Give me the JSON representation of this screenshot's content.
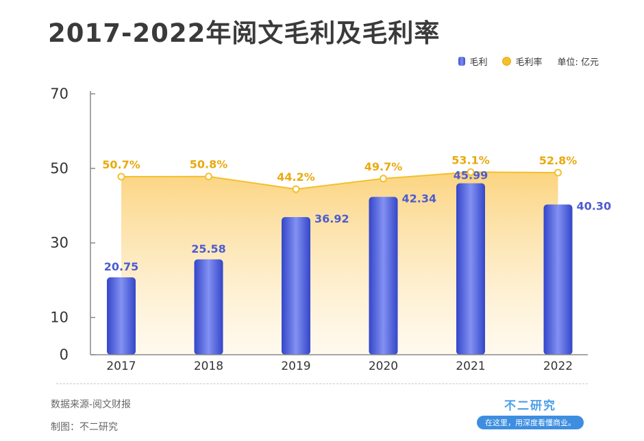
{
  "title": "2017-2022年阅文毛利及毛利率",
  "legend": {
    "bar_label": "毛利",
    "line_label": "毛利率",
    "unit": "单位: 亿元"
  },
  "footer": {
    "source": "数据来源-阅文财报",
    "maker": "制图：不二研究",
    "brand_name": "不二研究",
    "brand_tagline": "在这里，用深度看懂商业。"
  },
  "colors": {
    "bar": "#4a5bd8",
    "bar_label": "#4d5ccf",
    "line": "#f4bf2b",
    "line_label": "#e9a90f",
    "area_top": "#fbd27a",
    "area_bottom": "#fff4de"
  },
  "chart_data": {
    "type": "bar",
    "categories": [
      "2017",
      "2018",
      "2019",
      "2020",
      "2021",
      "2022"
    ],
    "series": [
      {
        "name": "毛利",
        "type": "bar",
        "values": [
          20.75,
          25.58,
          36.92,
          42.34,
          45.99,
          40.3
        ],
        "labels": [
          "20.75",
          "25.58",
          "36.92",
          "42.34",
          "45.99",
          "40.30"
        ]
      },
      {
        "name": "毛利率",
        "type": "area",
        "values": [
          50.7,
          50.8,
          44.2,
          49.7,
          53.1,
          52.8
        ],
        "labels": [
          "50.7%",
          "50.8%",
          "44.2%",
          "49.7%",
          "53.1%",
          "52.8%"
        ]
      }
    ],
    "y_ticks": [
      "0",
      "10",
      "30",
      "50",
      "70"
    ],
    "ylim": [
      0,
      70
    ]
  }
}
